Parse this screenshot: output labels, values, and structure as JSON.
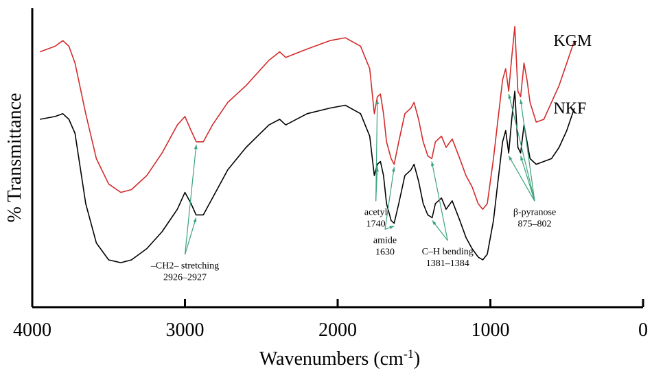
{
  "chart_data": {
    "type": "line",
    "xlabel": "Wavenumbers (cm",
    "xlabel_sup": "-1",
    "xlabel_end": ")",
    "ylabel": "% Transmittance",
    "xlim": [
      4000,
      0
    ],
    "x_reversed": true,
    "x_ticks": [
      4000,
      3000,
      2000,
      1000,
      0
    ],
    "x_tick_labels": [
      "4000",
      "3000",
      "2000",
      "1000",
      "0"
    ],
    "ylim": [
      0,
      100
    ],
    "grid": false,
    "series": [
      {
        "name": "KGM",
        "color": "#d42a2a",
        "x": [
          3950,
          3850,
          3800,
          3760,
          3720,
          3650,
          3580,
          3500,
          3420,
          3350,
          3250,
          3150,
          3050,
          3000,
          2960,
          2926,
          2880,
          2820,
          2720,
          2600,
          2450,
          2380,
          2340,
          2200,
          2050,
          1950,
          1850,
          1790,
          1760,
          1740,
          1720,
          1700,
          1680,
          1650,
          1630,
          1600,
          1560,
          1520,
          1500,
          1470,
          1440,
          1410,
          1384,
          1360,
          1320,
          1290,
          1250,
          1200,
          1160,
          1120,
          1080,
          1050,
          1020,
          980,
          950,
          920,
          900,
          880,
          860,
          840,
          820,
          802,
          780,
          760,
          740,
          700,
          650,
          600,
          550,
          500,
          450
        ],
        "y": [
          84,
          86,
          88,
          86,
          80,
          62,
          46,
          37,
          34,
          35,
          40,
          48,
          58,
          61,
          56,
          52,
          52,
          58,
          66,
          72,
          81,
          84,
          82,
          85,
          88,
          89,
          86,
          78,
          62,
          68,
          69,
          62,
          52,
          46,
          44,
          52,
          62,
          64,
          66,
          60,
          52,
          47,
          46,
          52,
          54,
          50,
          53,
          46,
          40,
          36,
          30,
          28,
          30,
          46,
          60,
          74,
          78,
          70,
          82,
          93,
          70,
          68,
          80,
          74,
          66,
          59,
          60,
          66,
          72,
          80,
          88
        ]
      },
      {
        "name": "NKF",
        "color": "#000000",
        "x": [
          3950,
          3850,
          3800,
          3760,
          3720,
          3650,
          3580,
          3500,
          3420,
          3350,
          3250,
          3150,
          3050,
          3000,
          2960,
          2927,
          2880,
          2820,
          2720,
          2600,
          2450,
          2380,
          2340,
          2200,
          2050,
          1950,
          1850,
          1790,
          1760,
          1740,
          1720,
          1700,
          1680,
          1650,
          1630,
          1600,
          1560,
          1520,
          1500,
          1470,
          1440,
          1410,
          1381,
          1360,
          1320,
          1290,
          1250,
          1200,
          1160,
          1120,
          1080,
          1050,
          1020,
          980,
          950,
          920,
          900,
          880,
          860,
          840,
          820,
          802,
          780,
          760,
          740,
          700,
          650,
          600,
          550,
          500,
          450
        ],
        "y": [
          60,
          61,
          62,
          60,
          55,
          30,
          16,
          10,
          9,
          10,
          14,
          20,
          28,
          34,
          30,
          26,
          26,
          32,
          42,
          50,
          58,
          60,
          58,
          62,
          64,
          65,
          62,
          54,
          40,
          44,
          45,
          40,
          30,
          24,
          23,
          30,
          40,
          42,
          44,
          38,
          30,
          26,
          25,
          30,
          32,
          28,
          31,
          24,
          18,
          14,
          11,
          10,
          12,
          24,
          38,
          52,
          56,
          48,
          60,
          70,
          50,
          48,
          58,
          52,
          46,
          44,
          45,
          46,
          50,
          56,
          64
        ]
      }
    ],
    "series_labels": [
      {
        "text": "KGM",
        "x": 560,
        "y": 88
      },
      {
        "text": "NKF",
        "x": 560,
        "y": 64
      }
    ],
    "annotations": [
      {
        "lines": [
          "–CH2– stretching",
          "2926–2927"
        ],
        "text_x": 3000,
        "text_y": 7,
        "anchor": "middle",
        "target_x": [
          2926,
          2927
        ],
        "target_y": [
          52,
          26
        ]
      },
      {
        "lines": [
          "acetyl",
          "1740"
        ],
        "text_x": 1750,
        "text_y": 26,
        "anchor": "middle",
        "target_x": [
          1740,
          1740
        ],
        "target_y": [
          68,
          44
        ]
      },
      {
        "lines": [
          "amide",
          "1630"
        ],
        "text_x": 1690,
        "text_y": 16,
        "anchor": "middle",
        "target_x": [
          1630,
          1630
        ],
        "target_y": [
          44,
          23
        ]
      },
      {
        "lines": [
          "C–H bending",
          "1381–1384"
        ],
        "text_x": 1280,
        "text_y": 12,
        "anchor": "middle",
        "target_x": [
          1384,
          1381
        ],
        "target_y": [
          46,
          25
        ]
      },
      {
        "lines": [
          "β-pyranose",
          "875–802"
        ],
        "text_x": 710,
        "text_y": 26,
        "anchor": "middle",
        "target_x": [
          880,
          802,
          880,
          802
        ],
        "target_y": [
          70,
          68,
          48,
          48
        ]
      }
    ]
  }
}
